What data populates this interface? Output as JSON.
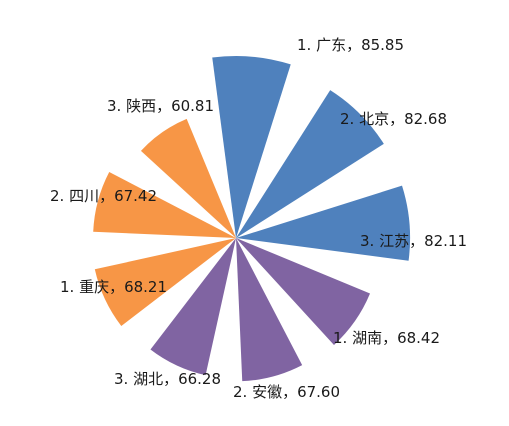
{
  "chart_data": {
    "type": "pie",
    "title": "",
    "categories": [
      "1. 广东",
      "2. 北京",
      "3. 江苏",
      "1. 湖南",
      "2. 安徽",
      "3. 湖北",
      "1. 重庆",
      "2. 四川",
      "3. 陕西"
    ],
    "values": [
      85.85,
      82.68,
      82.11,
      68.42,
      67.6,
      66.28,
      68.21,
      67.42,
      60.81
    ],
    "labels": [
      "1. 广东，85.85",
      "2. 北京，82.68",
      "3. 江苏，82.11",
      "1. 湖南，68.42",
      "2. 安徽，67.60",
      "3. 湖北，66.28",
      "1. 重庆，68.21",
      "2. 四川，67.42",
      "3. 陕西，60.81"
    ],
    "colors": [
      "#4f81bd",
      "#4f81bd",
      "#4f81bd",
      "#8064a2",
      "#8064a2",
      "#8064a2",
      "#f79646",
      "#f79646",
      "#f79646"
    ],
    "style": "rose (equal-angle sectors, radius proportional to value)",
    "legend": "none",
    "grid": false
  }
}
